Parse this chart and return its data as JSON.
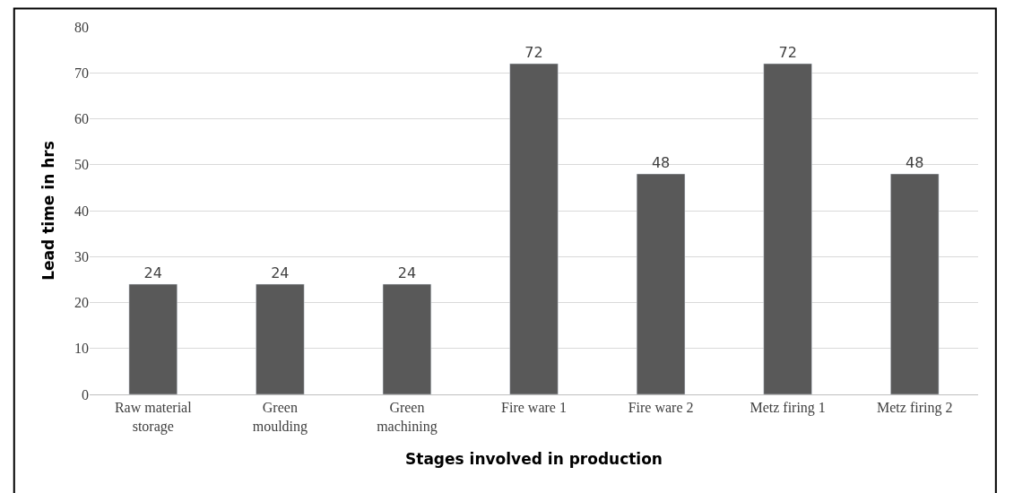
{
  "chart_data": {
    "type": "bar",
    "xlabel": "Stages involved in production",
    "ylabel": "Lead time in hrs",
    "categories": [
      "Raw material storage",
      "Green moulding",
      "Green machining",
      "Fire ware 1",
      "Fire ware 2",
      "Metz firing 1",
      "Metz firing 2"
    ],
    "values": [
      24,
      24,
      24,
      72,
      48,
      72,
      48
    ],
    "color": "#595959",
    "ylim": [
      0,
      80
    ],
    "yticks": [
      0,
      10,
      20,
      30,
      40,
      50,
      60,
      70,
      80
    ],
    "grid": "y",
    "data_labels": true
  }
}
